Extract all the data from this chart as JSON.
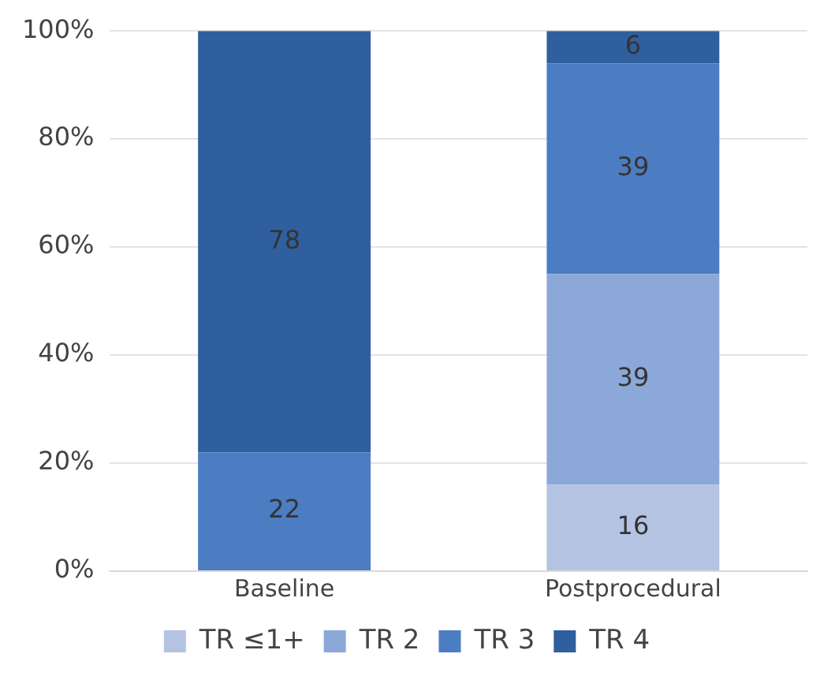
{
  "chart_data": {
    "type": "bar",
    "stacked": true,
    "categories": [
      "Baseline",
      "Postprocedural"
    ],
    "series": [
      {
        "name": "TR ≤1+",
        "color": "#b4c3e2",
        "values": [
          null,
          16
        ]
      },
      {
        "name": "TR 2",
        "color": "#8ba8d8",
        "values": [
          null,
          39
        ]
      },
      {
        "name": "TR 3",
        "color": "#4c7dc2",
        "values": [
          22,
          39
        ]
      },
      {
        "name": "TR 4",
        "color": "#2f5f9e",
        "values": [
          78,
          6
        ]
      }
    ],
    "ylim": [
      0,
      100
    ],
    "yticks": [
      {
        "value": 0,
        "label": "0%"
      },
      {
        "value": 20,
        "label": "20%"
      },
      {
        "value": 40,
        "label": "40%"
      },
      {
        "value": 60,
        "label": "60%"
      },
      {
        "value": 80,
        "label": "80%"
      },
      {
        "value": 100,
        "label": "100%"
      }
    ],
    "grid": "y",
    "legend": "bottom",
    "data_labels": true
  }
}
